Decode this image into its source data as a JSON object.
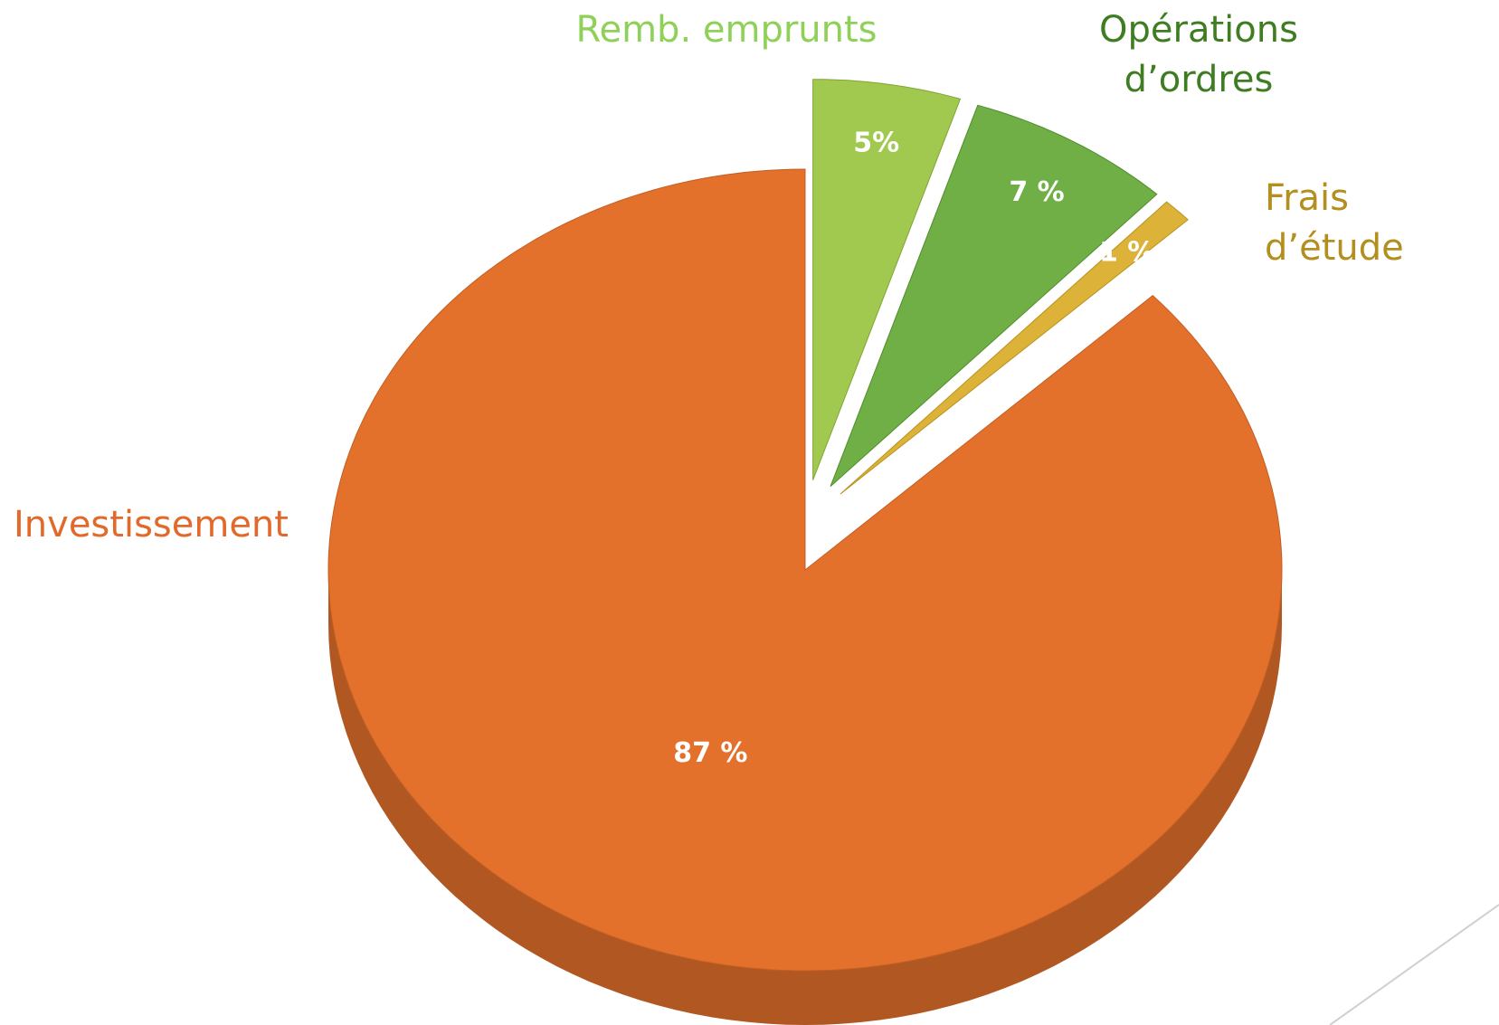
{
  "chart_data": {
    "type": "pie",
    "categories": [
      "Remb. emprunts",
      "Opérations d’ordres",
      "Frais d’étude",
      "Investissement"
    ],
    "values": [
      5,
      7,
      1,
      87
    ],
    "value_labels": [
      "5%",
      "7 %",
      "1 %",
      "87 %"
    ],
    "colors": [
      "#97c23c",
      "#5fa632",
      "#d9aa22",
      "#e3702b"
    ],
    "label_colors": [
      "#8fd158",
      "#3f7d22",
      "#b38f1f",
      "#e3692a"
    ]
  }
}
